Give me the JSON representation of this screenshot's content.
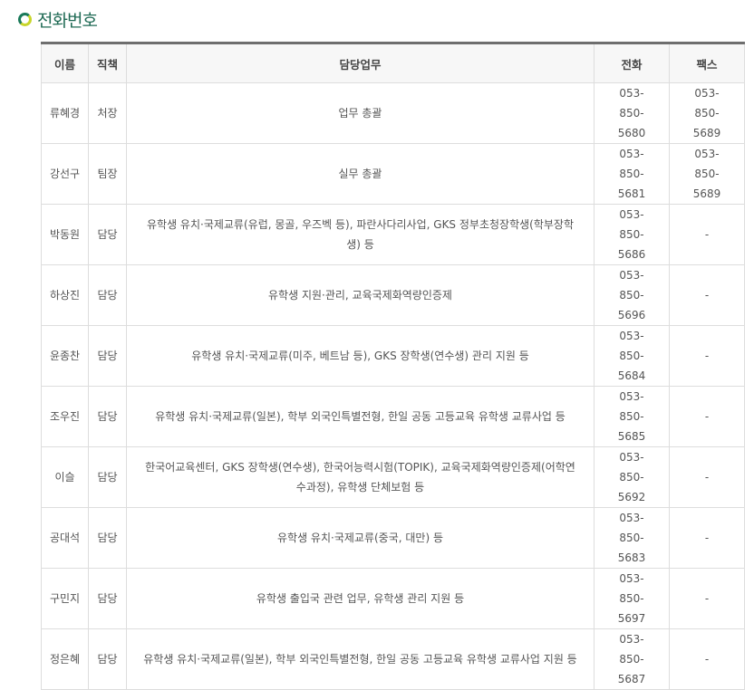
{
  "section_title": "전화번호",
  "headers": {
    "name": "이름",
    "position": "직책",
    "duty": "담당업무",
    "phone": "전화",
    "fax": "팩스"
  },
  "rows": [
    {
      "name": "류혜경",
      "position": "처장",
      "duty": "업무 총괄",
      "phone": "053-850-5680",
      "fax": "053-850-5689"
    },
    {
      "name": "강선구",
      "position": "팀장",
      "duty": "실무 총괄",
      "phone": "053-850-5681",
      "fax": "053-850-5689"
    },
    {
      "name": "박동원",
      "position": "담당",
      "duty": "유학생 유치·국제교류(유럽, 몽골, 우즈벡 등), 파란사다리사업, GKS 정부초청장학생(학부장학생) 등",
      "phone": "053-850-5686",
      "fax": "-"
    },
    {
      "name": "하상진",
      "position": "담당",
      "duty": "유학생 지원·관리, 교육국제화역량인증제",
      "phone": "053-850-5696",
      "fax": "-"
    },
    {
      "name": "윤종찬",
      "position": "담당",
      "duty": "유학생 유치·국제교류(미주, 베트남 등), GKS 장학생(연수생) 관리 지원 등",
      "phone": "053-850-5684",
      "fax": "-"
    },
    {
      "name": "조우진",
      "position": "담당",
      "duty": "유학생 유치·국제교류(일본), 학부 외국인특별전형, 한일 공동 고등교육 유학생 교류사업 등",
      "phone": "053-850-5685",
      "fax": "-"
    },
    {
      "name": "이슬",
      "position": "담당",
      "duty": "한국어교육센터, GKS 장학생(연수생), 한국어능력시험(TOPIK), 교육국제화역량인증제(어학연수과정), 유학생 단체보험 등",
      "phone": "053-850-5692",
      "fax": "-"
    },
    {
      "name": "공대석",
      "position": "담당",
      "duty": "유학생 유치·국제교류(중국, 대만) 등",
      "phone": "053-850-5683",
      "fax": "-"
    },
    {
      "name": "구민지",
      "position": "담당",
      "duty": "유학생 출입국 관련 업무, 유학생 관리 지원 등",
      "phone": "053-850-5697",
      "fax": "-"
    },
    {
      "name": "정은혜",
      "position": "담당",
      "duty": "유학생 유치·국제교류(일본), 학부 외국인특별전형, 한일 공동 고등교육 유학생 교류사업 지원 등",
      "phone": "053-850-5687",
      "fax": "-"
    }
  ]
}
